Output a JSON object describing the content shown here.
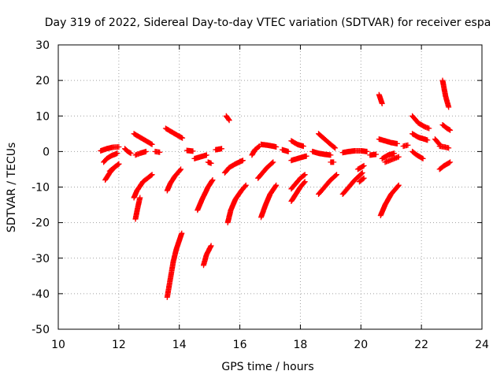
{
  "chart_data": {
    "type": "scatter",
    "title": "Day 319 of 2022, Sidereal Day-to-day VTEC variation (SDTVAR) for receiver espa",
    "xlabel": "GPS time / hours",
    "ylabel": "SDTVAR / TECUs",
    "xlim": [
      10,
      24
    ],
    "ylim": [
      -50,
      30
    ],
    "xticks": [
      10,
      12,
      14,
      16,
      18,
      20,
      22,
      24
    ],
    "yticks": [
      -50,
      -40,
      -30,
      -20,
      -10,
      0,
      10,
      20,
      30
    ],
    "xtick_labels": [
      "10",
      "12",
      "14",
      "16",
      "18",
      "20",
      "22",
      "24"
    ],
    "ytick_labels": [
      "-50",
      "-40",
      "-30",
      "-20",
      "-10",
      "0",
      "10",
      "20",
      "30"
    ],
    "grid": true,
    "marker": "+",
    "color": "#ff0000",
    "arcs": [
      {
        "x": [
          11.4,
          11.6,
          11.8,
          12.0
        ],
        "y": [
          0.2,
          0.8,
          1.2,
          1.3
        ]
      },
      {
        "x": [
          11.5,
          11.6,
          11.75,
          11.95
        ],
        "y": [
          -3.0,
          -2.0,
          -1.2,
          -0.5
        ]
      },
      {
        "x": [
          11.55,
          11.7,
          11.85,
          12.0
        ],
        "y": [
          -8.0,
          -6.0,
          -4.5,
          -3.5
        ]
      },
      {
        "x": [
          11.7,
          11.85,
          12.0
        ],
        "y": [
          -5.5,
          -4.5,
          -3.5
        ]
      },
      {
        "x": [
          12.2,
          12.3,
          12.4
        ],
        "y": [
          0.8,
          0.0,
          -0.5
        ]
      },
      {
        "x": [
          12.5,
          12.7,
          12.9,
          13.1
        ],
        "y": [
          5.0,
          4.0,
          3.0,
          2.0
        ]
      },
      {
        "x": [
          12.55,
          12.7,
          12.9
        ],
        "y": [
          -1.0,
          -0.5,
          0.0
        ]
      },
      {
        "x": [
          12.5,
          12.6,
          12.8,
          13.1
        ],
        "y": [
          -13.0,
          -11.0,
          -8.5,
          -6.5
        ]
      },
      {
        "x": [
          12.55,
          12.62,
          12.7
        ],
        "y": [
          -19.0,
          -16.0,
          -13.0
        ]
      },
      {
        "x": [
          13.2,
          13.35
        ],
        "y": [
          0.0,
          -0.2
        ]
      },
      {
        "x": [
          13.55,
          13.75,
          13.95,
          14.1
        ],
        "y": [
          6.5,
          5.5,
          4.5,
          3.8
        ]
      },
      {
        "x": [
          13.6,
          13.7,
          13.85,
          14.05
        ],
        "y": [
          -11.0,
          -9.0,
          -7.0,
          -5.0
        ]
      },
      {
        "x": [
          13.6,
          13.7,
          13.8,
          13.9,
          14.0,
          14.08
        ],
        "y": [
          -41.0,
          -36.0,
          -31.0,
          -27.5,
          -25.0,
          -23.0
        ]
      },
      {
        "x": [
          14.25,
          14.45
        ],
        "y": [
          0.3,
          0.1
        ]
      },
      {
        "x": [
          14.5,
          14.7,
          14.9
        ],
        "y": [
          -2.0,
          -1.5,
          -1.0
        ]
      },
      {
        "x": [
          14.6,
          14.75,
          14.95,
          15.1
        ],
        "y": [
          -16.5,
          -13.5,
          -10.0,
          -8.0
        ]
      },
      {
        "x": [
          14.8,
          14.9,
          15.05
        ],
        "y": [
          -32.0,
          -29.0,
          -26.5
        ]
      },
      {
        "x": [
          14.95,
          15.05
        ],
        "y": [
          -3.0,
          -3.3
        ]
      },
      {
        "x": [
          15.2,
          15.4
        ],
        "y": [
          0.5,
          0.8
        ]
      },
      {
        "x": [
          15.55,
          15.65
        ],
        "y": [
          10.0,
          8.8
        ]
      },
      {
        "x": [
          15.5,
          15.65,
          15.85,
          16.1
        ],
        "y": [
          -6.0,
          -4.5,
          -3.5,
          -2.5
        ]
      },
      {
        "x": [
          15.6,
          15.7,
          15.85,
          16.05,
          16.2
        ],
        "y": [
          -20.0,
          -16.5,
          -13.5,
          -11.0,
          -9.5
        ]
      },
      {
        "x": [
          16.4,
          16.5,
          16.65
        ],
        "y": [
          -1.0,
          0.5,
          1.5
        ]
      },
      {
        "x": [
          16.7,
          16.9,
          17.1,
          17.2
        ],
        "y": [
          2.0,
          1.8,
          1.5,
          1.3
        ]
      },
      {
        "x": [
          16.6,
          16.75,
          16.9,
          17.1
        ],
        "y": [
          -7.5,
          -6.0,
          -4.5,
          -3.0
        ]
      },
      {
        "x": [
          16.7,
          16.85,
          17.0,
          17.2
        ],
        "y": [
          -18.5,
          -15.0,
          -12.0,
          -9.5
        ]
      },
      {
        "x": [
          17.4,
          17.6
        ],
        "y": [
          0.5,
          0.0
        ]
      },
      {
        "x": [
          17.7,
          17.9,
          18.1
        ],
        "y": [
          3.0,
          2.0,
          1.5
        ]
      },
      {
        "x": [
          17.7,
          17.9,
          18.1,
          18.2
        ],
        "y": [
          -2.5,
          -2.0,
          -1.5,
          -1.3
        ]
      },
      {
        "x": [
          17.7,
          17.85,
          18.0,
          18.15
        ],
        "y": [
          -10.5,
          -9.0,
          -7.5,
          -6.5
        ]
      },
      {
        "x": [
          17.7,
          17.85,
          18.0,
          18.15
        ],
        "y": [
          -14.0,
          -12.0,
          -10.0,
          -8.5
        ]
      },
      {
        "x": [
          18.4,
          18.6,
          18.8,
          19.0
        ],
        "y": [
          0.0,
          -0.5,
          -0.8,
          -1.0
        ]
      },
      {
        "x": [
          18.6,
          18.8,
          19.0,
          19.15
        ],
        "y": [
          5.0,
          3.5,
          2.0,
          1.0
        ]
      },
      {
        "x": [
          18.6,
          18.8,
          19.0,
          19.2
        ],
        "y": [
          -12.0,
          -10.0,
          -8.0,
          -6.5
        ]
      },
      {
        "x": [
          19.0,
          19.1
        ],
        "y": [
          -3.0,
          -3.0
        ]
      },
      {
        "x": [
          19.4,
          19.6,
          19.8,
          20.0,
          20.2
        ],
        "y": [
          -0.3,
          0.0,
          0.2,
          0.2,
          0.0
        ]
      },
      {
        "x": [
          19.4,
          19.6,
          19.8,
          20.05
        ],
        "y": [
          -12.0,
          -10.0,
          -8.0,
          -6.0
        ]
      },
      {
        "x": [
          19.9,
          20.1
        ],
        "y": [
          -5.0,
          -4.0
        ]
      },
      {
        "x": [
          19.95,
          20.1
        ],
        "y": [
          -8.5,
          -7.5
        ]
      },
      {
        "x": [
          20.3,
          20.5
        ],
        "y": [
          -1.0,
          -0.8
        ]
      },
      {
        "x": [
          20.6,
          20.7
        ],
        "y": [
          16.0,
          13.5
        ]
      },
      {
        "x": [
          20.6,
          20.8,
          21.0,
          21.2
        ],
        "y": [
          3.5,
          3.0,
          2.5,
          2.2
        ]
      },
      {
        "x": [
          20.7,
          20.9,
          21.1
        ],
        "y": [
          -2.0,
          -1.0,
          -0.5
        ]
      },
      {
        "x": [
          20.65,
          20.8,
          21.0,
          21.25
        ],
        "y": [
          -18.0,
          -15.0,
          -12.0,
          -9.5
        ]
      },
      {
        "x": [
          20.8,
          20.95,
          21.1,
          21.25
        ],
        "y": [
          -3.0,
          -2.5,
          -2.0,
          -1.5
        ]
      },
      {
        "x": [
          21.4,
          21.55
        ],
        "y": [
          1.5,
          1.8
        ]
      },
      {
        "x": [
          21.7,
          21.9,
          22.1,
          22.25
        ],
        "y": [
          10.0,
          8.0,
          7.0,
          6.5
        ]
      },
      {
        "x": [
          21.7,
          21.9,
          22.1,
          22.2
        ],
        "y": [
          5.0,
          4.0,
          3.5,
          3.2
        ]
      },
      {
        "x": [
          21.7,
          21.85,
          22.05
        ],
        "y": [
          0.0,
          -1.0,
          -2.0
        ]
      },
      {
        "x": [
          22.45,
          22.6
        ],
        "y": [
          3.5,
          2.0
        ]
      },
      {
        "x": [
          22.6,
          22.75,
          22.9
        ],
        "y": [
          1.5,
          1.3,
          1.0
        ]
      },
      {
        "x": [
          22.7,
          22.8,
          22.9
        ],
        "y": [
          20.0,
          15.5,
          12.5
        ]
      },
      {
        "x": [
          22.7,
          22.85,
          22.95
        ],
        "y": [
          7.5,
          6.5,
          6.0
        ]
      },
      {
        "x": [
          22.6,
          22.75,
          22.95
        ],
        "y": [
          -5.0,
          -4.0,
          -3.0
        ]
      }
    ]
  }
}
